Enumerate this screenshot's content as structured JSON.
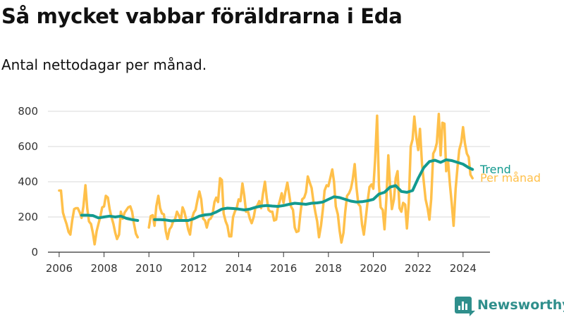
{
  "header": {
    "title": "Så mycket vabbar föräldrarna i Eda",
    "subtitle": "Antal nettodagar per månad."
  },
  "brand": {
    "name": "Newsworthy"
  },
  "colors": {
    "monthly": "#ffc04a",
    "trend": "#139a8f",
    "grid": "#d9d9d9",
    "axis": "#333333",
    "brand": "#2f8f8c"
  },
  "chart_data": {
    "type": "line",
    "title": "Så mycket vabbar föräldrarna i Eda",
    "subtitle": "Antal nettodagar per månad.",
    "xlabel": "",
    "ylabel": "",
    "xlim": [
      2005.5,
      2025.2
    ],
    "ylim": [
      0,
      800
    ],
    "x_ticks": [
      2006,
      2008,
      2010,
      2012,
      2014,
      2016,
      2018,
      2020,
      2022,
      2024
    ],
    "y_ticks": [
      0,
      200,
      400,
      600,
      800
    ],
    "grid": "horizontal",
    "legend": "right, at line ends",
    "series": [
      {
        "name": "Per månad",
        "color": "#ffc04a",
        "points": [
          [
            2006.0,
            350
          ],
          [
            2006.08,
            350
          ],
          [
            2006.17,
            225
          ],
          [
            2006.25,
            190
          ],
          [
            2006.33,
            160
          ],
          [
            2006.42,
            115
          ],
          [
            2006.5,
            100
          ],
          [
            2006.58,
            180
          ],
          [
            2006.67,
            245
          ],
          [
            2006.75,
            250
          ],
          [
            2006.83,
            250
          ],
          [
            2006.92,
            225
          ],
          [
            2007.0,
            195
          ],
          [
            2007.08,
            260
          ],
          [
            2007.17,
            380
          ],
          [
            2007.25,
            250
          ],
          [
            2007.33,
            175
          ],
          [
            2007.42,
            160
          ],
          [
            2007.5,
            110
          ],
          [
            2007.58,
            45
          ],
          [
            2007.67,
            120
          ],
          [
            2007.75,
            160
          ],
          [
            2007.83,
            200
          ],
          [
            2007.92,
            255
          ],
          [
            2008.0,
            260
          ],
          [
            2008.08,
            320
          ],
          [
            2008.17,
            310
          ],
          [
            2008.25,
            245
          ],
          [
            2008.33,
            200
          ],
          [
            2008.42,
            160
          ],
          [
            2008.5,
            110
          ],
          [
            2008.58,
            75
          ],
          [
            2008.67,
            100
          ],
          [
            2008.75,
            230
          ],
          [
            2008.83,
            190
          ],
          [
            2008.92,
            225
          ],
          [
            2009.0,
            240
          ],
          [
            2009.08,
            255
          ],
          [
            2009.17,
            260
          ],
          [
            2009.25,
            230
          ],
          [
            2009.33,
            165
          ],
          [
            2009.42,
            105
          ],
          [
            2009.5,
            85
          ],
          [
            2010.0,
            140
          ],
          [
            2010.08,
            205
          ],
          [
            2010.17,
            210
          ],
          [
            2010.25,
            150
          ],
          [
            2010.33,
            260
          ],
          [
            2010.42,
            320
          ],
          [
            2010.5,
            250
          ],
          [
            2010.58,
            220
          ],
          [
            2010.67,
            215
          ],
          [
            2010.75,
            120
          ],
          [
            2010.83,
            75
          ],
          [
            2010.92,
            130
          ],
          [
            2011.0,
            145
          ],
          [
            2011.08,
            175
          ],
          [
            2011.17,
            190
          ],
          [
            2011.25,
            230
          ],
          [
            2011.33,
            210
          ],
          [
            2011.42,
            180
          ],
          [
            2011.5,
            255
          ],
          [
            2011.58,
            230
          ],
          [
            2011.67,
            180
          ],
          [
            2011.75,
            130
          ],
          [
            2011.83,
            100
          ],
          [
            2011.92,
            190
          ],
          [
            2012.0,
            225
          ],
          [
            2012.08,
            240
          ],
          [
            2012.17,
            300
          ],
          [
            2012.25,
            345
          ],
          [
            2012.33,
            300
          ],
          [
            2012.42,
            190
          ],
          [
            2012.5,
            180
          ],
          [
            2012.58,
            140
          ],
          [
            2012.67,
            185
          ],
          [
            2012.75,
            190
          ],
          [
            2012.83,
            210
          ],
          [
            2012.92,
            285
          ],
          [
            2013.0,
            310
          ],
          [
            2013.08,
            285
          ],
          [
            2013.17,
            420
          ],
          [
            2013.25,
            410
          ],
          [
            2013.33,
            220
          ],
          [
            2013.42,
            175
          ],
          [
            2013.5,
            150
          ],
          [
            2013.58,
            90
          ],
          [
            2013.67,
            90
          ],
          [
            2013.75,
            200
          ],
          [
            2013.83,
            230
          ],
          [
            2013.92,
            255
          ],
          [
            2014.0,
            300
          ],
          [
            2014.08,
            290
          ],
          [
            2014.17,
            390
          ],
          [
            2014.25,
            320
          ],
          [
            2014.33,
            230
          ],
          [
            2014.42,
            230
          ],
          [
            2014.5,
            190
          ],
          [
            2014.58,
            165
          ],
          [
            2014.67,
            200
          ],
          [
            2014.75,
            255
          ],
          [
            2014.83,
            265
          ],
          [
            2014.92,
            290
          ],
          [
            2015.0,
            250
          ],
          [
            2015.08,
            330
          ],
          [
            2015.17,
            400
          ],
          [
            2015.25,
            310
          ],
          [
            2015.33,
            240
          ],
          [
            2015.42,
            230
          ],
          [
            2015.5,
            230
          ],
          [
            2015.58,
            180
          ],
          [
            2015.67,
            185
          ],
          [
            2015.75,
            255
          ],
          [
            2015.83,
            290
          ],
          [
            2015.92,
            335
          ],
          [
            2016.0,
            280
          ],
          [
            2016.08,
            340
          ],
          [
            2016.17,
            395
          ],
          [
            2016.25,
            330
          ],
          [
            2016.33,
            260
          ],
          [
            2016.42,
            240
          ],
          [
            2016.5,
            140
          ],
          [
            2016.58,
            115
          ],
          [
            2016.67,
            120
          ],
          [
            2016.75,
            220
          ],
          [
            2016.83,
            300
          ],
          [
            2016.92,
            310
          ],
          [
            2017.0,
            340
          ],
          [
            2017.08,
            430
          ],
          [
            2017.17,
            395
          ],
          [
            2017.25,
            365
          ],
          [
            2017.33,
            290
          ],
          [
            2017.42,
            225
          ],
          [
            2017.5,
            175
          ],
          [
            2017.58,
            85
          ],
          [
            2017.67,
            150
          ],
          [
            2017.75,
            240
          ],
          [
            2017.83,
            350
          ],
          [
            2017.92,
            380
          ],
          [
            2018.0,
            375
          ],
          [
            2018.08,
            420
          ],
          [
            2018.17,
            470
          ],
          [
            2018.25,
            400
          ],
          [
            2018.33,
            260
          ],
          [
            2018.42,
            215
          ],
          [
            2018.5,
            120
          ],
          [
            2018.58,
            55
          ],
          [
            2018.67,
            110
          ],
          [
            2018.75,
            230
          ],
          [
            2018.83,
            320
          ],
          [
            2018.92,
            335
          ],
          [
            2019.0,
            360
          ],
          [
            2019.08,
            410
          ],
          [
            2019.17,
            500
          ],
          [
            2019.25,
            370
          ],
          [
            2019.33,
            275
          ],
          [
            2019.42,
            260
          ],
          [
            2019.5,
            155
          ],
          [
            2019.58,
            100
          ],
          [
            2019.67,
            200
          ],
          [
            2019.75,
            290
          ],
          [
            2019.83,
            370
          ],
          [
            2019.92,
            385
          ],
          [
            2020.0,
            360
          ],
          [
            2020.08,
            520
          ],
          [
            2020.17,
            775
          ],
          [
            2020.25,
            380
          ],
          [
            2020.33,
            255
          ],
          [
            2020.42,
            240
          ],
          [
            2020.5,
            130
          ],
          [
            2020.58,
            300
          ],
          [
            2020.67,
            550
          ],
          [
            2020.75,
            370
          ],
          [
            2020.83,
            245
          ],
          [
            2020.92,
            300
          ],
          [
            2021.0,
            420
          ],
          [
            2021.08,
            460
          ],
          [
            2021.17,
            250
          ],
          [
            2021.25,
            230
          ],
          [
            2021.33,
            280
          ],
          [
            2021.42,
            270
          ],
          [
            2021.5,
            135
          ],
          [
            2021.58,
            280
          ],
          [
            2021.67,
            600
          ],
          [
            2021.75,
            640
          ],
          [
            2021.83,
            770
          ],
          [
            2021.92,
            650
          ],
          [
            2022.0,
            580
          ],
          [
            2022.08,
            700
          ],
          [
            2022.17,
            500
          ],
          [
            2022.25,
            400
          ],
          [
            2022.33,
            300
          ],
          [
            2022.42,
            250
          ],
          [
            2022.5,
            185
          ],
          [
            2022.58,
            300
          ],
          [
            2022.67,
            560
          ],
          [
            2022.75,
            580
          ],
          [
            2022.83,
            620
          ],
          [
            2022.92,
            785
          ],
          [
            2023.0,
            550
          ],
          [
            2023.08,
            735
          ],
          [
            2023.17,
            730
          ],
          [
            2023.25,
            460
          ],
          [
            2023.33,
            520
          ],
          [
            2023.42,
            380
          ],
          [
            2023.5,
            270
          ],
          [
            2023.58,
            150
          ],
          [
            2023.67,
            360
          ],
          [
            2023.75,
            480
          ],
          [
            2023.83,
            580
          ],
          [
            2023.92,
            625
          ],
          [
            2024.0,
            710
          ],
          [
            2024.08,
            620
          ],
          [
            2024.17,
            560
          ],
          [
            2024.25,
            540
          ],
          [
            2024.33,
            440
          ],
          [
            2024.42,
            420
          ]
        ]
      },
      {
        "name": "Trend",
        "color": "#139a8f",
        "points": [
          [
            2007.0,
            210
          ],
          [
            2007.25,
            210
          ],
          [
            2007.5,
            208
          ],
          [
            2007.75,
            195
          ],
          [
            2008.0,
            200
          ],
          [
            2008.25,
            205
          ],
          [
            2008.5,
            200
          ],
          [
            2008.75,
            205
          ],
          [
            2009.0,
            192
          ],
          [
            2009.25,
            185
          ],
          [
            2009.5,
            180
          ],
          [
            2010.25,
            185
          ],
          [
            2010.5,
            185
          ],
          [
            2010.75,
            183
          ],
          [
            2011.0,
            178
          ],
          [
            2011.25,
            180
          ],
          [
            2011.5,
            180
          ],
          [
            2011.75,
            180
          ],
          [
            2012.0,
            190
          ],
          [
            2012.25,
            205
          ],
          [
            2012.5,
            212
          ],
          [
            2012.75,
            215
          ],
          [
            2013.0,
            228
          ],
          [
            2013.25,
            245
          ],
          [
            2013.5,
            250
          ],
          [
            2013.75,
            248
          ],
          [
            2014.0,
            245
          ],
          [
            2014.25,
            240
          ],
          [
            2014.5,
            245
          ],
          [
            2014.75,
            255
          ],
          [
            2015.0,
            262
          ],
          [
            2015.25,
            265
          ],
          [
            2015.5,
            262
          ],
          [
            2015.75,
            260
          ],
          [
            2016.0,
            265
          ],
          [
            2016.25,
            272
          ],
          [
            2016.5,
            278
          ],
          [
            2016.75,
            275
          ],
          [
            2017.0,
            272
          ],
          [
            2017.25,
            278
          ],
          [
            2017.5,
            280
          ],
          [
            2017.75,
            285
          ],
          [
            2018.0,
            300
          ],
          [
            2018.25,
            315
          ],
          [
            2018.5,
            310
          ],
          [
            2018.75,
            300
          ],
          [
            2019.0,
            290
          ],
          [
            2019.25,
            285
          ],
          [
            2019.5,
            287
          ],
          [
            2019.75,
            292
          ],
          [
            2020.0,
            300
          ],
          [
            2020.25,
            330
          ],
          [
            2020.5,
            340
          ],
          [
            2020.75,
            370
          ],
          [
            2021.0,
            378
          ],
          [
            2021.25,
            345
          ],
          [
            2021.5,
            340
          ],
          [
            2021.75,
            350
          ],
          [
            2022.0,
            420
          ],
          [
            2022.25,
            480
          ],
          [
            2022.5,
            515
          ],
          [
            2022.75,
            522
          ],
          [
            2023.0,
            510
          ],
          [
            2023.25,
            525
          ],
          [
            2023.5,
            520
          ],
          [
            2023.75,
            510
          ],
          [
            2024.0,
            500
          ],
          [
            2024.25,
            480
          ],
          [
            2024.42,
            470
          ]
        ]
      }
    ]
  }
}
